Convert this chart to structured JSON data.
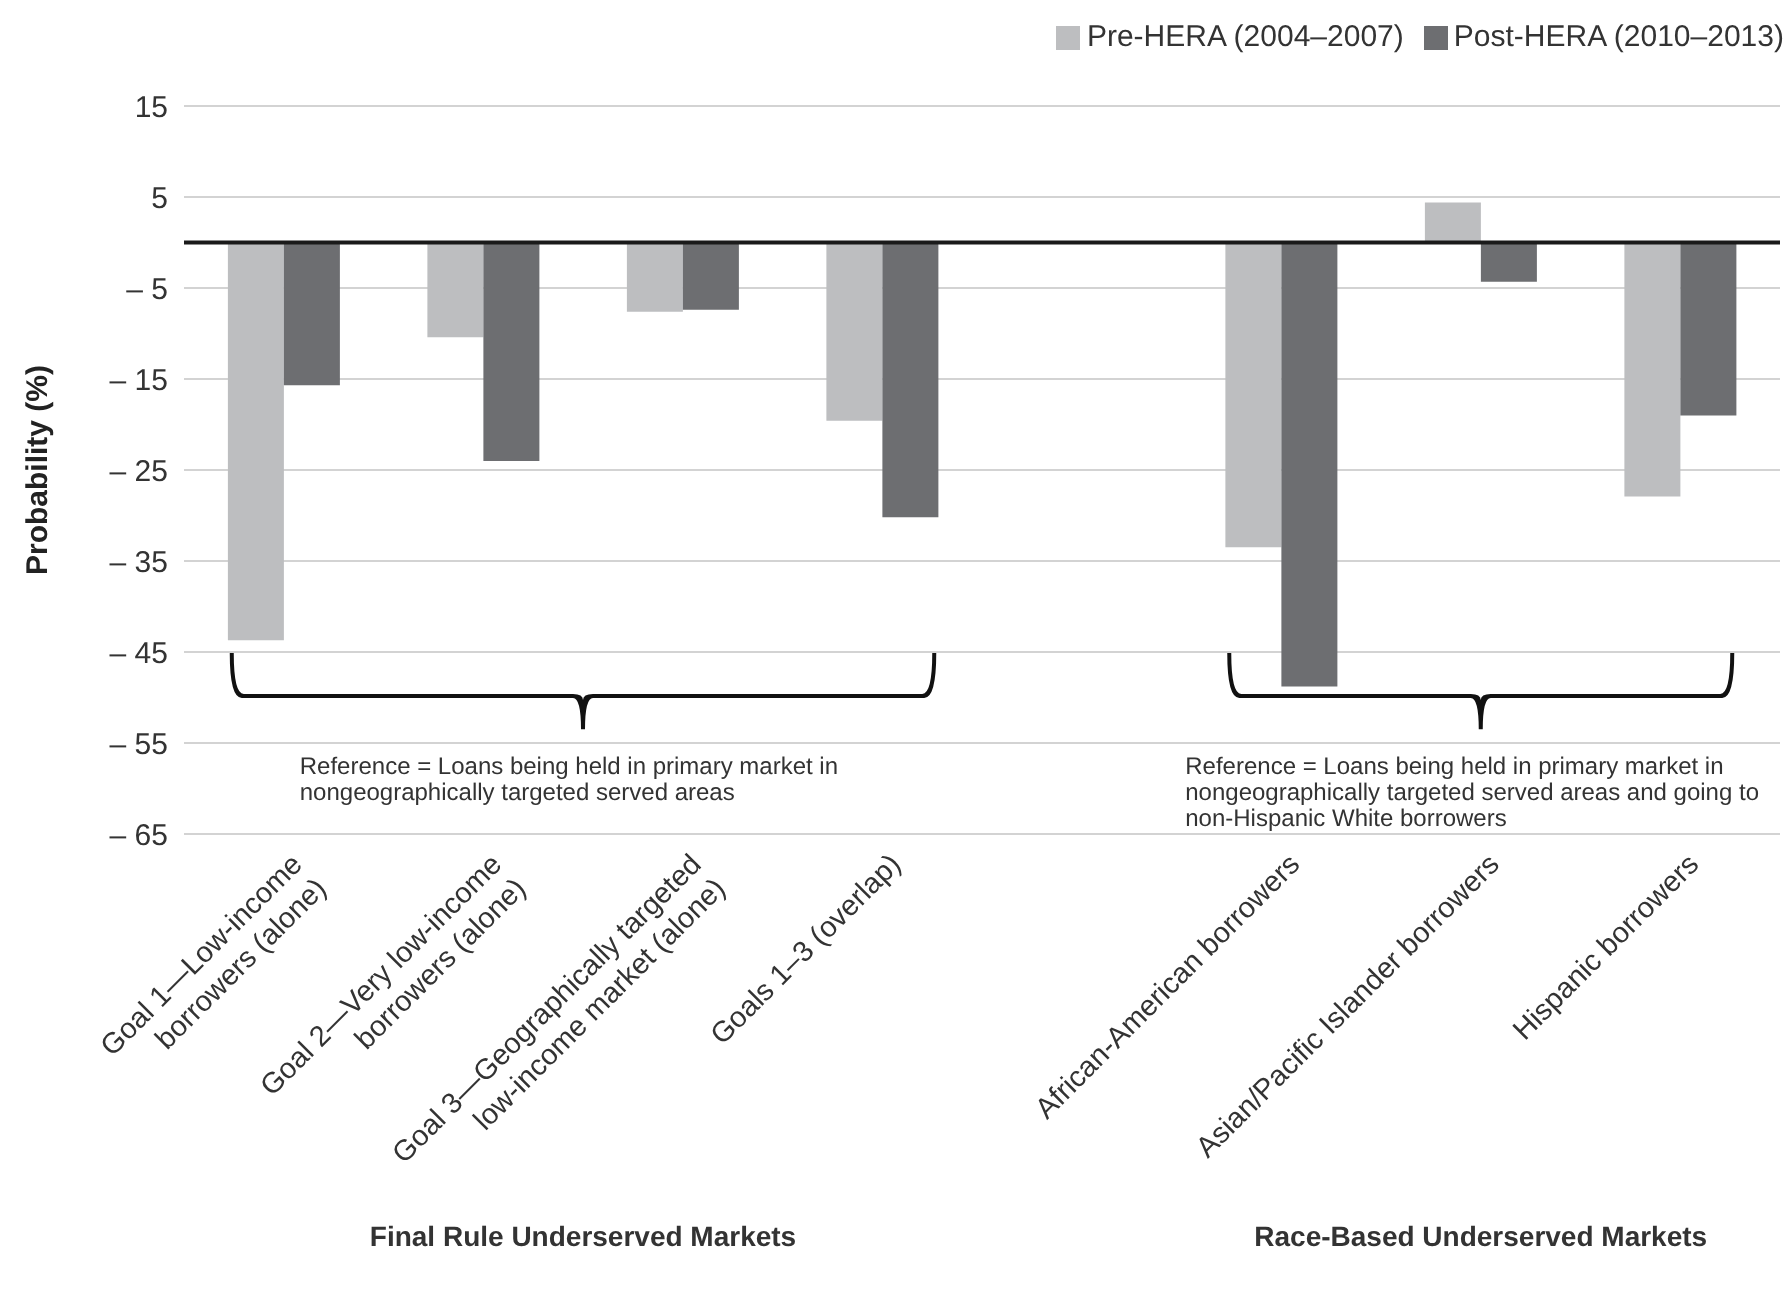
{
  "chart_data": {
    "type": "bar",
    "ylabel": "Probability (%)",
    "categories": [
      "Goal 1—Low-income borrowers (alone)",
      "Goal 2—Very low-income borrowers (alone)",
      "Goal 3—Geographically targeted low-income market (alone)",
      "Goals 1–3 (overlap)",
      null,
      "African-American borrowers",
      "Asian/Pacific Islander borrowers",
      "Hispanic borrowers"
    ],
    "series": [
      {
        "name": "Pre-HERA (2004–2007)",
        "color": "#bdbec0",
        "values": [
          -43.7,
          -10.4,
          -7.6,
          -19.6,
          null,
          -33.5,
          4.4,
          -27.9
        ]
      },
      {
        "name": "Post-HERA (2010–2013)",
        "color": "#6d6e71",
        "values": [
          -15.7,
          -24.0,
          -7.4,
          -30.2,
          null,
          -48.8,
          -4.3,
          -19.0
        ]
      }
    ],
    "ylim": [
      -65,
      15
    ],
    "yticks": [
      15,
      5,
      {
        "value": -5,
        "label": "– 5"
      },
      {
        "value": -15,
        "label": "– 15"
      },
      {
        "value": -25,
        "label": "– 25"
      },
      {
        "value": -35,
        "label": "– 35"
      },
      {
        "value": -45,
        "label": "– 45"
      },
      {
        "value": -55,
        "label": "– 55"
      },
      {
        "value": -65,
        "label": "– 65"
      }
    ],
    "ref_lines": [
      {
        "axis": "y",
        "value": 0,
        "color": "#1a1a1a"
      }
    ],
    "grid": "y",
    "legend": "top right",
    "annotations": [
      "Reference = Loans being held in primary market in nongeographically targeted served areas",
      "Reference = Loans being held in primary market in nongeographically targeted served areas and going to non-Hispanic White borrowers",
      "Final Rule Underserved Markets",
      "Race-Based Underserved Markets"
    ]
  }
}
